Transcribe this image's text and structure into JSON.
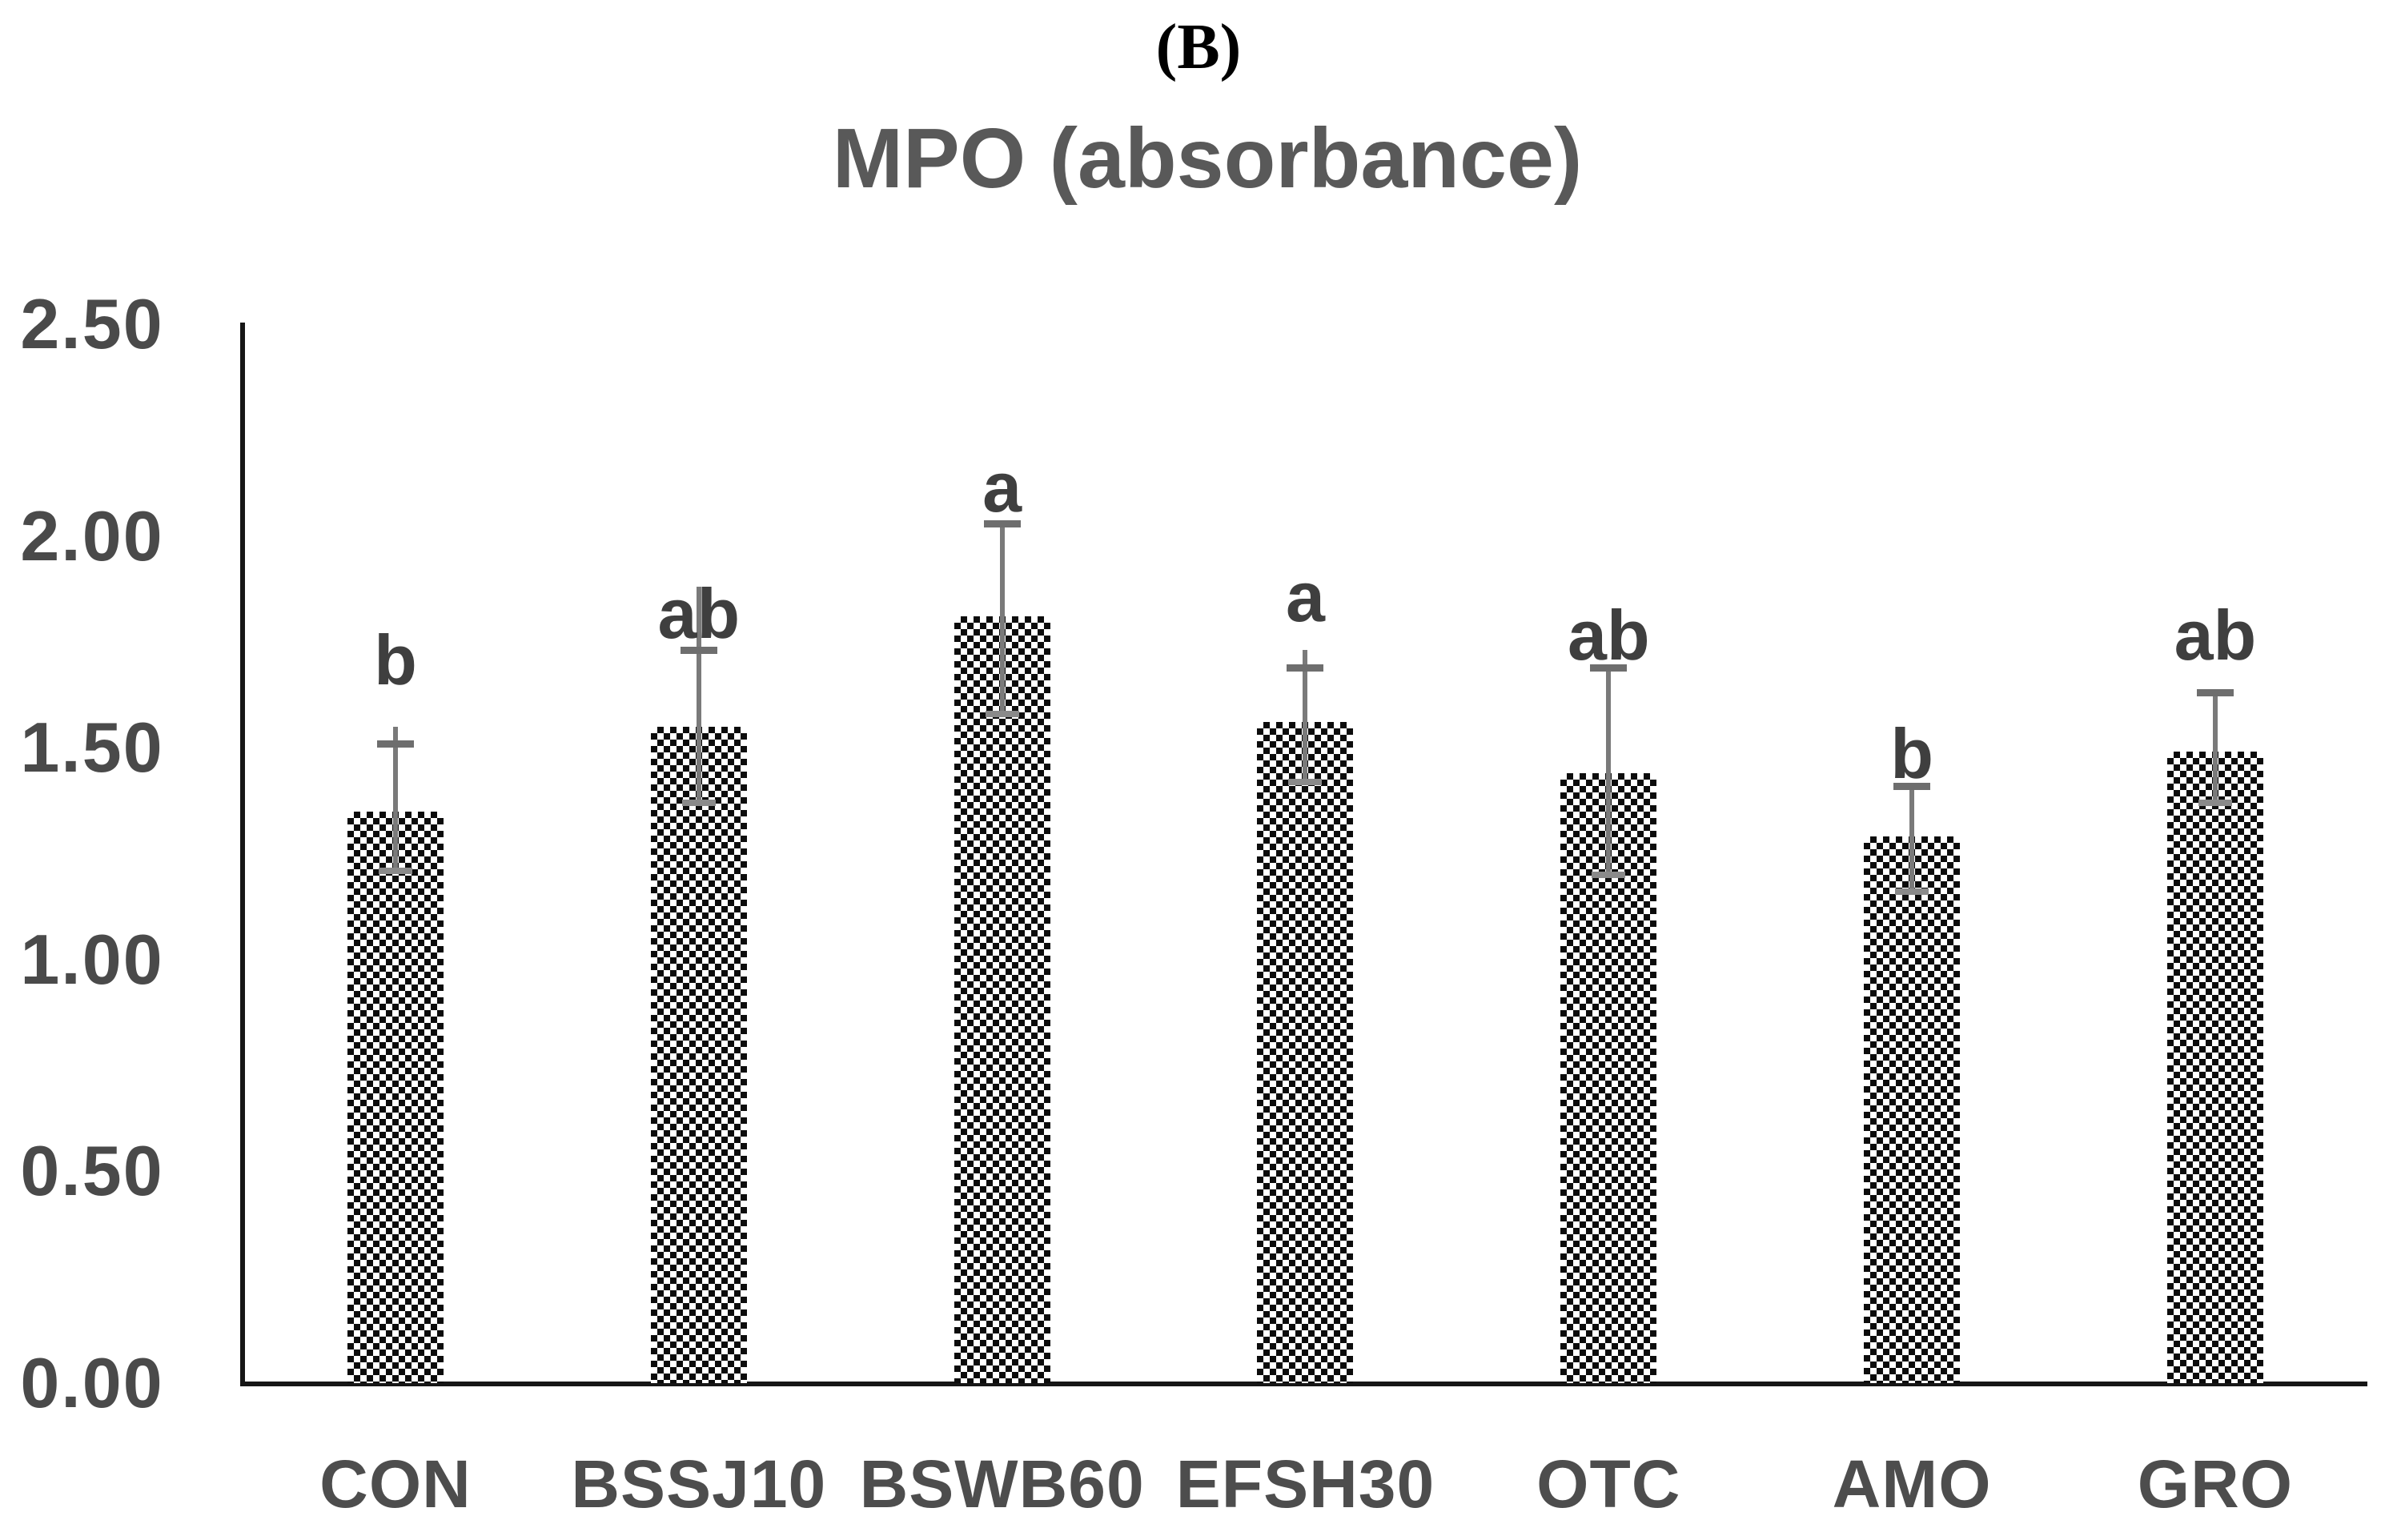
{
  "figure_label": "(B)",
  "chart_data": {
    "type": "bar",
    "title": "MPO (absorbance)",
    "xlabel": "",
    "ylabel": "",
    "categories": [
      "CON",
      "BSSJ10",
      "BSWB60",
      "EFSH30",
      "OTC",
      "AMO",
      "GRO"
    ],
    "values": [
      1.35,
      1.55,
      1.81,
      1.56,
      1.44,
      1.29,
      1.49
    ],
    "error_cap_upper": [
      1.51,
      1.73,
      2.03,
      1.69,
      1.69,
      1.41,
      1.63
    ],
    "error_line_top": [
      1.55,
      1.88,
      2.03,
      1.73,
      1.69,
      1.41,
      1.63
    ],
    "error_cap_lower": [
      1.21,
      1.37,
      1.58,
      1.42,
      1.2,
      1.16,
      1.37
    ],
    "sig_letters": [
      "b",
      "ab",
      "a",
      "a",
      "ab",
      "b",
      "ab"
    ],
    "sig_letter_y": [
      1.64,
      1.75,
      2.05,
      1.79,
      1.7,
      1.42,
      1.7
    ],
    "ylim": [
      0,
      2.5
    ],
    "ytick_labels": [
      "2.50",
      "2.00",
      "1.50",
      "1.00",
      "0.50",
      "0.00"
    ],
    "ytick_values": [
      2.5,
      2.0,
      1.5,
      1.0,
      0.5,
      0.0
    ],
    "grid": false,
    "legend": "none",
    "bar_pattern": "diagonal-checkerboard",
    "colors": {
      "title": "#595959",
      "tick_label": "#4a4a4a",
      "sig_letter": "#3f3f3f",
      "axis": "#161616",
      "error_bar": "#7a7a7a",
      "bar_fill": "#0c0c0c",
      "background": "#ffffff"
    }
  }
}
